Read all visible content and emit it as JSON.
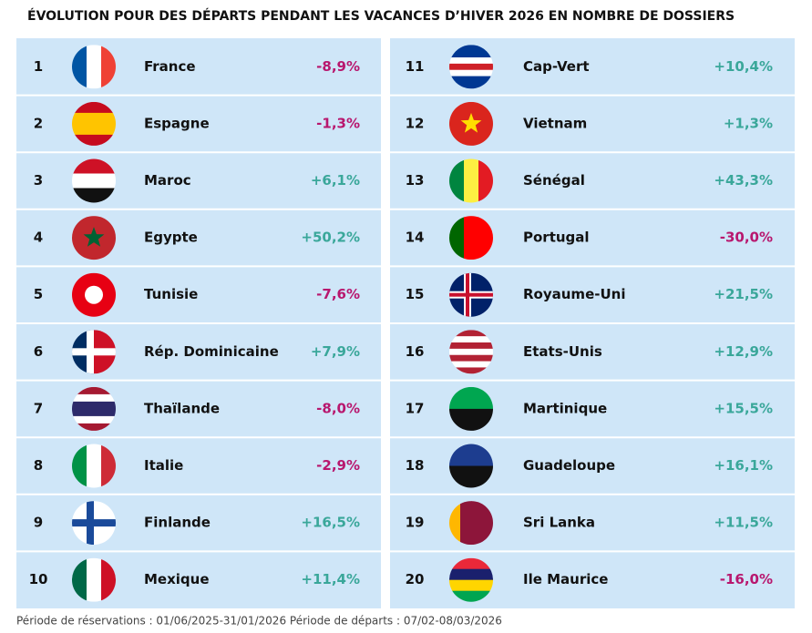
{
  "header": {
    "title": "ÉVOLUTION POUR DES DÉPARTS PENDANT LES VACANCES D’HIVER 2026 EN NOMBRE DE DOSSIERS"
  },
  "table": {
    "rows": [
      [
        "1",
        "France",
        "-8,9%"
      ],
      [
        "2",
        "Espagne",
        "-1,3%"
      ],
      [
        "3",
        "Maroc",
        "+6,1%"
      ],
      [
        "4",
        "Egypte",
        "+50,2%"
      ],
      [
        "5",
        "Tunisie",
        "-7,6%"
      ],
      [
        "6",
        "Rép. Dominicaine",
        "+7,9%"
      ],
      [
        "7",
        "Thaïlande",
        "-8,0%"
      ],
      [
        "8",
        "Italie",
        "-2,9%"
      ],
      [
        "9",
        "Finlande",
        "+16,5%"
      ],
      [
        "10",
        "Mexique",
        "+11,4%"
      ],
      [
        "11",
        "Cap-Vert",
        "+10,4%"
      ],
      [
        "12",
        "Vietnam",
        "+1,3%"
      ],
      [
        "13",
        "Sénégal",
        "+43,3%"
      ],
      [
        "14",
        "Portugal",
        "-30,0%"
      ],
      [
        "15",
        "Royaume-Uni",
        "+21,5%"
      ],
      [
        "16",
        "Etats-Unis",
        "+12,9%"
      ],
      [
        "17",
        "Martinique",
        "+15,5%"
      ],
      [
        "18",
        "Guadeloupe",
        "+16,1%"
      ],
      [
        "19",
        "Sri Lanka",
        "+11,5%"
      ],
      [
        "20",
        "Ile Maurice",
        "-16,0%"
      ]
    ]
  },
  "footer": {
    "note": "Période de réservations : 01/06/2025-31/01/2026 Période de départs : 07/02-08/03/2026"
  }
}
